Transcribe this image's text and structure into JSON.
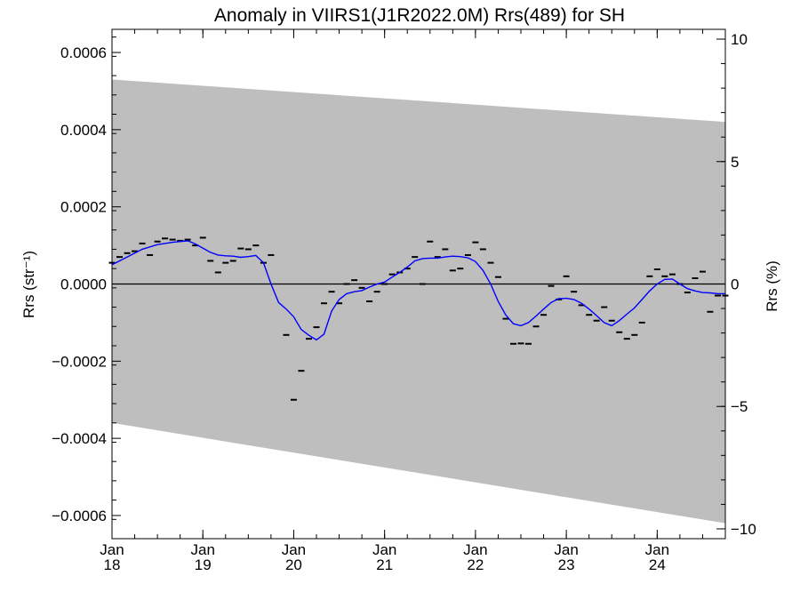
{
  "chart_data": {
    "type": "line",
    "title": "Anomaly in VIIRS1(J1R2022.0M) Rrs(489) for SH",
    "ylabel_left": "Rrs (str⁻¹)",
    "ylabel_right": "Rrs (%)",
    "xlim": [
      2018.0,
      2024.75
    ],
    "ylim_left": [
      -0.00066,
      0.00066
    ],
    "ylim_right": [
      -10.4,
      10.4
    ],
    "grid": false,
    "x_ticks": [
      {
        "x": 2018,
        "line1": "Jan",
        "line2": "18"
      },
      {
        "x": 2019,
        "line1": "Jan",
        "line2": "19"
      },
      {
        "x": 2020,
        "line1": "Jan",
        "line2": "20"
      },
      {
        "x": 2021,
        "line1": "Jan",
        "line2": "21"
      },
      {
        "x": 2022,
        "line1": "Jan",
        "line2": "22"
      },
      {
        "x": 2023,
        "line1": "Jan",
        "line2": "23"
      },
      {
        "x": 2024,
        "line1": "Jan",
        "line2": "24"
      }
    ],
    "y_ticks_left": [
      {
        "value": 0.0006,
        "label": "0.0006"
      },
      {
        "value": 0.0004,
        "label": "0.0004"
      },
      {
        "value": 0.0002,
        "label": "0.0002"
      },
      {
        "value": 0.0,
        "label": "0.0000"
      },
      {
        "value": -0.0002,
        "label": "−0.0002"
      },
      {
        "value": -0.0004,
        "label": "−0.0004"
      },
      {
        "value": -0.0006,
        "label": "−0.0006"
      }
    ],
    "y_ticks_right": [
      {
        "value": 10,
        "label": "10"
      },
      {
        "value": 5,
        "label": "5"
      },
      {
        "value": 0,
        "label": "0"
      },
      {
        "value": -5,
        "label": "−5"
      },
      {
        "value": -10,
        "label": "−10"
      }
    ],
    "uncertainty_band": {
      "x": [
        2018.0,
        2024.75
      ],
      "upper": [
        0.00053,
        0.00042
      ],
      "lower": [
        -0.00036,
        -0.00062
      ],
      "color": "#bebebe"
    },
    "zero_line": 0.0,
    "monthly_points": {
      "color": "#000000",
      "x": [
        2018.0,
        2018.083,
        2018.167,
        2018.25,
        2018.333,
        2018.417,
        2018.5,
        2018.583,
        2018.667,
        2018.75,
        2018.833,
        2018.917,
        2019.0,
        2019.083,
        2019.167,
        2019.25,
        2019.333,
        2019.417,
        2019.5,
        2019.583,
        2019.667,
        2019.75,
        2019.917,
        2020.0,
        2020.083,
        2020.167,
        2020.25,
        2020.333,
        2020.417,
        2020.5,
        2020.583,
        2020.667,
        2020.75,
        2020.833,
        2020.917,
        2021.0,
        2021.083,
        2021.167,
        2021.25,
        2021.333,
        2021.417,
        2021.5,
        2021.583,
        2021.667,
        2021.75,
        2021.833,
        2021.917,
        2022.0,
        2022.083,
        2022.167,
        2022.25,
        2022.333,
        2022.417,
        2022.5,
        2022.583,
        2022.667,
        2022.75,
        2022.833,
        2022.917,
        2023.0,
        2023.083,
        2023.167,
        2023.25,
        2023.333,
        2023.417,
        2023.5,
        2023.583,
        2023.667,
        2023.75,
        2023.833,
        2023.917,
        2024.0,
        2024.083,
        2024.167,
        2024.25,
        2024.333,
        2024.417,
        2024.5,
        2024.583,
        2024.667,
        2024.75
      ],
      "y": [
        5.5e-05,
        7e-05,
        8e-05,
        8.5e-05,
        0.000105,
        7.5e-05,
        0.00011,
        0.000118,
        0.000115,
        0.000112,
        0.000115,
        0.0001,
        0.00012,
        6e-05,
        3e-05,
        5.5e-05,
        6e-05,
        9.2e-05,
        9e-05,
        0.0001,
        5.5e-05,
        7.5e-05,
        -0.000132,
        -0.0003,
        -0.000225,
        -0.000142,
        -0.000112,
        -5e-05,
        -2e-05,
        -5e-05,
        0.0,
        1e-05,
        -1e-05,
        -4.5e-05,
        -2e-05,
        0.0,
        2.5e-05,
        3e-05,
        4e-05,
        7e-05,
        0.0,
        0.00011,
        7e-05,
        9e-05,
        3.5e-05,
        4e-05,
        7.5e-05,
        0.000108,
        9e-05,
        5.5e-05,
        1.8e-05,
        -9e-05,
        -0.000155,
        -0.000154,
        -0.000155,
        -0.00011,
        -8e-05,
        -5e-06,
        -4e-05,
        2e-05,
        -2e-05,
        -5.5e-05,
        -8e-05,
        -9.5e-05,
        -6e-05,
        -9.5e-05,
        -0.000125,
        -0.000142,
        -0.000132,
        -0.0001,
        2e-05,
        3.8e-05,
        2e-05,
        2.5e-05,
        0.0,
        -2.2e-05,
        1.5e-05,
        3.2e-05,
        -7.2e-05,
        -3e-05,
        -3e-05
      ]
    },
    "smoothed_line": {
      "color": "#0000ff",
      "x": [
        2018.0,
        2018.167,
        2018.333,
        2018.5,
        2018.667,
        2018.833,
        2018.917,
        2019.0,
        2019.083,
        2019.167,
        2019.25,
        2019.333,
        2019.417,
        2019.5,
        2019.583,
        2019.667,
        2019.75,
        2019.833,
        2019.917,
        2020.0,
        2020.083,
        2020.167,
        2020.25,
        2020.333,
        2020.417,
        2020.5,
        2020.583,
        2020.667,
        2020.75,
        2020.833,
        2020.917,
        2021.0,
        2021.083,
        2021.167,
        2021.25,
        2021.333,
        2021.417,
        2021.5,
        2021.583,
        2021.667,
        2021.75,
        2021.833,
        2021.917,
        2022.0,
        2022.083,
        2022.167,
        2022.25,
        2022.333,
        2022.417,
        2022.5,
        2022.583,
        2022.667,
        2022.75,
        2022.833,
        2022.917,
        2023.0,
        2023.083,
        2023.167,
        2023.25,
        2023.333,
        2023.417,
        2023.5,
        2023.583,
        2023.667,
        2023.75,
        2023.833,
        2023.917,
        2024.0,
        2024.083,
        2024.167,
        2024.25,
        2024.333,
        2024.417,
        2024.5,
        2024.583,
        2024.667,
        2024.75
      ],
      "y": [
        5e-05,
        7e-05,
        9e-05,
        0.000102,
        0.000108,
        0.000112,
        0.000104,
        9.3e-05,
        8.2e-05,
        7.5e-05,
        7.3e-05,
        7.2e-05,
        6.9e-05,
        7.1e-05,
        7.4e-05,
        5.5e-05,
        0.0,
        -4.8e-05,
        -6.5e-05,
        -8.5e-05,
        -0.000118,
        -0.000133,
        -0.000145,
        -0.00013,
        -7e-05,
        -4e-05,
        -2.5e-05,
        -2e-05,
        -1.7e-05,
        -8e-06,
        0.0,
        5e-06,
        1.8e-05,
        3e-05,
        4.4e-05,
        6e-05,
        6.6e-05,
        6.7e-05,
        6.7e-05,
        7e-05,
        7.2e-05,
        7.1e-05,
        6.8e-05,
        5.8e-05,
        3.5e-05,
        0.0,
        -4.5e-05,
        -8e-05,
        -0.000103,
        -0.000108,
        -0.0001,
        -8.3e-05,
        -6.5e-05,
        -4.8e-05,
        -3.8e-05,
        -3.7e-05,
        -4e-05,
        -5e-05,
        -6.5e-05,
        -8.2e-05,
        -0.0001,
        -0.000108,
        -9.5e-05,
        -7.8e-05,
        -6.2e-05,
        -4e-05,
        -1.8e-05,
        0.0,
        1.2e-05,
        1.3e-05,
        0.0,
        -1.2e-05,
        -1.8e-05,
        -2.2e-05,
        -2.3e-05,
        -2.5e-05,
        -2.5e-05
      ]
    }
  }
}
